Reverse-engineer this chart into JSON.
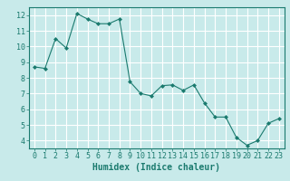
{
  "x": [
    0,
    1,
    2,
    3,
    4,
    5,
    6,
    7,
    8,
    9,
    10,
    11,
    12,
    13,
    14,
    15,
    16,
    17,
    18,
    19,
    20,
    21,
    22,
    23
  ],
  "y": [
    8.7,
    8.6,
    10.5,
    9.9,
    12.1,
    11.75,
    11.45,
    11.45,
    11.75,
    7.75,
    7.0,
    6.85,
    7.5,
    7.55,
    7.2,
    7.55,
    6.4,
    5.5,
    5.5,
    4.2,
    3.7,
    4.0,
    5.1,
    5.4
  ],
  "line_color": "#1a7a6e",
  "marker": "D",
  "marker_size": 2,
  "bg_color": "#c8eaea",
  "grid_color": "#ffffff",
  "xlabel": "Humidex (Indice chaleur)",
  "ylim": [
    3.5,
    12.5
  ],
  "xlim": [
    -0.5,
    23.5
  ],
  "yticks": [
    4,
    5,
    6,
    7,
    8,
    9,
    10,
    11,
    12
  ],
  "xticks": [
    0,
    1,
    2,
    3,
    4,
    5,
    6,
    7,
    8,
    9,
    10,
    11,
    12,
    13,
    14,
    15,
    16,
    17,
    18,
    19,
    20,
    21,
    22,
    23
  ],
  "tick_label_fontsize": 6,
  "xlabel_fontsize": 7
}
